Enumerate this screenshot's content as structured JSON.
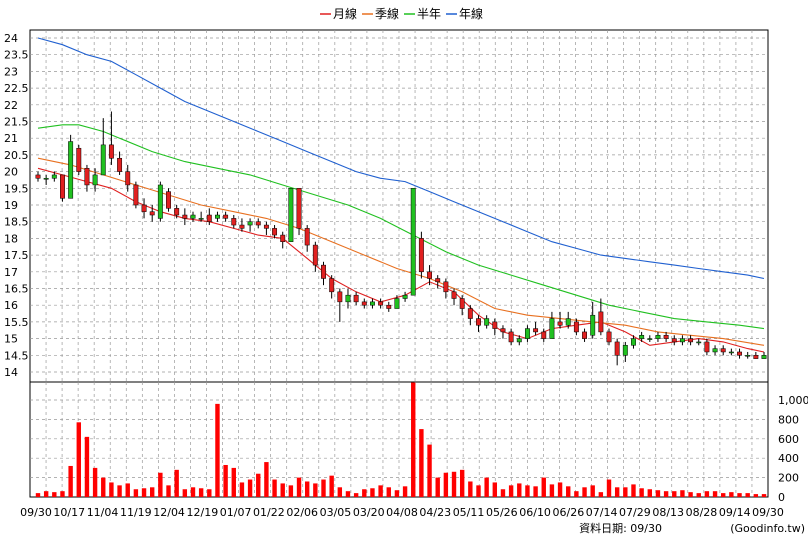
{
  "chart_data": {
    "type": "candlestick",
    "legend": {
      "placement": "top-center",
      "items": [
        {
          "name": "月線",
          "color": "#e02020"
        },
        {
          "name": "季線",
          "color": "#e87020"
        },
        {
          "name": "半年",
          "color": "#20c020"
        },
        {
          "name": "年線",
          "color": "#2060d0"
        }
      ]
    },
    "price_axis": {
      "min": 14,
      "max": 24,
      "ticks": [
        "24",
        "23.5",
        "23",
        "22.5",
        "22",
        "21.5",
        "21",
        "20.5",
        "20",
        "19.5",
        "19",
        "18.5",
        "18",
        "17.5",
        "17",
        "16.5",
        "16",
        "15.5",
        "15",
        "14.5",
        "14"
      ]
    },
    "volume_axis": {
      "min": 0,
      "max": 1000,
      "ticks": [
        "1,000",
        "800",
        "600",
        "400",
        "200",
        "0"
      ]
    },
    "x_labels": [
      "09/30",
      "10/17",
      "11/04",
      "11/19",
      "12/04",
      "12/19",
      "01/07",
      "01/22",
      "02/06",
      "03/05",
      "03/20",
      "04/08",
      "04/23",
      "05/11",
      "05/26",
      "06/10",
      "06/26",
      "07/14",
      "07/29",
      "08/13",
      "08/28",
      "09/14",
      "09/30"
    ],
    "grid": true,
    "candle_colors": {
      "up": "#20c020",
      "down": "#e02020"
    },
    "volume_color": "#ff0000",
    "ma_series": [
      {
        "name": "月線",
        "color": "#e02020",
        "points": [
          [
            0,
            20.1
          ],
          [
            3,
            19.9
          ],
          [
            6,
            19.7
          ],
          [
            9,
            19.5
          ],
          [
            12,
            19.1
          ],
          [
            15,
            18.8
          ],
          [
            18,
            18.6
          ],
          [
            21,
            18.5
          ],
          [
            24,
            18.3
          ],
          [
            27,
            18.1
          ],
          [
            30,
            18.0
          ],
          [
            33,
            17.4
          ],
          [
            36,
            16.8
          ],
          [
            39,
            16.4
          ],
          [
            42,
            16.1
          ],
          [
            45,
            16.3
          ],
          [
            48,
            16.7
          ],
          [
            51,
            16.4
          ],
          [
            54,
            15.7
          ],
          [
            57,
            15.2
          ],
          [
            60,
            15.0
          ],
          [
            63,
            15.3
          ],
          [
            66,
            15.4
          ],
          [
            69,
            15.5
          ],
          [
            72,
            15.2
          ],
          [
            75,
            14.8
          ],
          [
            78,
            14.9
          ],
          [
            81,
            15.0
          ],
          [
            84,
            14.9
          ],
          [
            87,
            14.7
          ],
          [
            89,
            14.6
          ]
        ]
      },
      {
        "name": "季線",
        "color": "#e87020",
        "points": [
          [
            0,
            20.4
          ],
          [
            4,
            20.2
          ],
          [
            8,
            19.9
          ],
          [
            12,
            19.6
          ],
          [
            16,
            19.3
          ],
          [
            20,
            19.0
          ],
          [
            24,
            18.8
          ],
          [
            28,
            18.6
          ],
          [
            32,
            18.3
          ],
          [
            36,
            17.9
          ],
          [
            40,
            17.5
          ],
          [
            44,
            17.1
          ],
          [
            48,
            16.8
          ],
          [
            52,
            16.4
          ],
          [
            56,
            15.9
          ],
          [
            60,
            15.7
          ],
          [
            64,
            15.6
          ],
          [
            68,
            15.5
          ],
          [
            72,
            15.4
          ],
          [
            76,
            15.2
          ],
          [
            80,
            15.1
          ],
          [
            84,
            15.0
          ],
          [
            89,
            14.8
          ]
        ]
      },
      {
        "name": "半年",
        "color": "#20c020",
        "points": [
          [
            0,
            21.3
          ],
          [
            3,
            21.4
          ],
          [
            5,
            21.4
          ],
          [
            8,
            21.2
          ],
          [
            10,
            21.0
          ],
          [
            14,
            20.6
          ],
          [
            18,
            20.3
          ],
          [
            22,
            20.1
          ],
          [
            26,
            19.9
          ],
          [
            30,
            19.6
          ],
          [
            34,
            19.3
          ],
          [
            38,
            19.0
          ],
          [
            42,
            18.6
          ],
          [
            46,
            18.1
          ],
          [
            50,
            17.6
          ],
          [
            54,
            17.2
          ],
          [
            58,
            16.9
          ],
          [
            62,
            16.6
          ],
          [
            66,
            16.3
          ],
          [
            70,
            16.0
          ],
          [
            74,
            15.8
          ],
          [
            78,
            15.6
          ],
          [
            82,
            15.5
          ],
          [
            86,
            15.4
          ],
          [
            89,
            15.3
          ]
        ]
      },
      {
        "name": "年線",
        "color": "#2060d0",
        "points": [
          [
            0,
            24.0
          ],
          [
            3,
            23.8
          ],
          [
            6,
            23.5
          ],
          [
            9,
            23.3
          ],
          [
            12,
            22.9
          ],
          [
            15,
            22.5
          ],
          [
            18,
            22.1
          ],
          [
            21,
            21.8
          ],
          [
            24,
            21.5
          ],
          [
            27,
            21.2
          ],
          [
            30,
            20.9
          ],
          [
            33,
            20.6
          ],
          [
            36,
            20.3
          ],
          [
            39,
            20.0
          ],
          [
            42,
            19.8
          ],
          [
            45,
            19.7
          ],
          [
            48,
            19.4
          ],
          [
            51,
            19.1
          ],
          [
            54,
            18.8
          ],
          [
            57,
            18.5
          ],
          [
            60,
            18.2
          ],
          [
            63,
            17.9
          ],
          [
            66,
            17.7
          ],
          [
            69,
            17.5
          ],
          [
            72,
            17.4
          ],
          [
            75,
            17.3
          ],
          [
            78,
            17.2
          ],
          [
            81,
            17.1
          ],
          [
            84,
            17.0
          ],
          [
            87,
            16.9
          ],
          [
            89,
            16.8
          ]
        ]
      }
    ],
    "candles": [
      [
        19.9,
        19.8,
        20.0,
        19.7
      ],
      [
        19.8,
        19.8,
        19.9,
        19.6
      ],
      [
        19.8,
        19.9,
        20.0,
        19.7
      ],
      [
        19.9,
        19.2,
        19.9,
        19.1
      ],
      [
        19.2,
        20.9,
        21.1,
        19.2
      ],
      [
        20.7,
        20.0,
        20.8,
        19.9
      ],
      [
        20.1,
        19.6,
        20.2,
        19.4
      ],
      [
        19.6,
        19.9,
        20.1,
        19.4
      ],
      [
        19.9,
        20.8,
        21.6,
        19.9
      ],
      [
        20.8,
        20.4,
        21.8,
        20.2
      ],
      [
        20.4,
        20.0,
        20.6,
        19.9
      ],
      [
        20.0,
        19.6,
        20.2,
        19.4
      ],
      [
        19.6,
        19.0,
        19.7,
        18.9
      ],
      [
        19.0,
        18.8,
        19.2,
        18.6
      ],
      [
        18.8,
        18.7,
        19.0,
        18.5
      ],
      [
        18.6,
        19.6,
        19.7,
        18.5
      ],
      [
        19.4,
        18.9,
        19.5,
        18.8
      ],
      [
        18.9,
        18.7,
        19.0,
        18.6
      ],
      [
        18.7,
        18.6,
        18.9,
        18.4
      ],
      [
        18.6,
        18.7,
        18.8,
        18.5
      ],
      [
        18.6,
        18.6,
        18.8,
        18.5
      ],
      [
        18.7,
        18.5,
        18.9,
        18.4
      ],
      [
        18.6,
        18.7,
        18.8,
        18.5
      ],
      [
        18.7,
        18.6,
        18.8,
        18.5
      ],
      [
        18.6,
        18.4,
        18.7,
        18.3
      ],
      [
        18.4,
        18.3,
        18.6,
        18.2
      ],
      [
        18.4,
        18.5,
        18.6,
        18.2
      ],
      [
        18.5,
        18.4,
        18.6,
        18.3
      ],
      [
        18.4,
        18.3,
        18.5,
        18.1
      ],
      [
        18.3,
        18.1,
        18.4,
        18.0
      ],
      [
        18.1,
        17.9,
        18.2,
        17.7
      ],
      [
        17.9,
        19.5,
        19.5,
        17.9
      ],
      [
        19.5,
        18.3,
        19.5,
        18.1
      ],
      [
        18.3,
        17.8,
        18.4,
        17.6
      ],
      [
        17.8,
        17.2,
        17.9,
        17.0
      ],
      [
        17.2,
        16.8,
        17.3,
        16.6
      ],
      [
        16.8,
        16.4,
        16.9,
        16.2
      ],
      [
        16.4,
        16.1,
        16.5,
        15.5
      ],
      [
        16.1,
        16.3,
        16.5,
        15.9
      ],
      [
        16.3,
        16.1,
        16.4,
        16.0
      ],
      [
        16.1,
        16.0,
        16.2,
        15.9
      ],
      [
        16.0,
        16.1,
        16.2,
        15.9
      ],
      [
        16.1,
        16.0,
        16.2,
        15.9
      ],
      [
        16.0,
        15.9,
        16.1,
        15.8
      ],
      [
        15.9,
        16.2,
        16.3,
        15.9
      ],
      [
        16.2,
        16.3,
        16.4,
        16.1
      ],
      [
        16.3,
        19.5,
        19.5,
        16.3
      ],
      [
        18.0,
        17.0,
        18.2,
        16.8
      ],
      [
        17.0,
        16.8,
        17.2,
        16.6
      ],
      [
        16.8,
        16.7,
        16.9,
        16.5
      ],
      [
        16.7,
        16.4,
        16.8,
        16.2
      ],
      [
        16.4,
        16.2,
        16.5,
        16.0
      ],
      [
        16.2,
        15.9,
        16.3,
        15.7
      ],
      [
        15.9,
        15.6,
        16.0,
        15.4
      ],
      [
        15.6,
        15.4,
        15.7,
        15.2
      ],
      [
        15.4,
        15.6,
        15.7,
        15.3
      ],
      [
        15.5,
        15.3,
        15.6,
        15.1
      ],
      [
        15.3,
        15.2,
        15.4,
        15.0
      ],
      [
        15.2,
        14.9,
        15.3,
        14.8
      ],
      [
        14.9,
        15.0,
        15.1,
        14.8
      ],
      [
        15.0,
        15.3,
        15.4,
        14.9
      ],
      [
        15.3,
        15.2,
        15.5,
        15.1
      ],
      [
        15.2,
        15.0,
        15.3,
        14.9
      ],
      [
        15.0,
        15.6,
        15.8,
        15.0
      ],
      [
        15.5,
        15.4,
        15.8,
        15.3
      ],
      [
        15.4,
        15.6,
        15.8,
        15.3
      ],
      [
        15.5,
        15.2,
        15.6,
        15.1
      ],
      [
        15.2,
        15.0,
        15.3,
        14.9
      ],
      [
        15.1,
        15.7,
        16.1,
        15.0
      ],
      [
        15.8,
        15.2,
        16.2,
        15.1
      ],
      [
        15.2,
        14.9,
        15.3,
        14.8
      ],
      [
        14.9,
        14.5,
        15.0,
        14.2
      ],
      [
        14.5,
        14.8,
        14.9,
        14.3
      ],
      [
        14.8,
        15.0,
        15.1,
        14.7
      ],
      [
        15.0,
        15.1,
        15.2,
        14.9
      ],
      [
        15.0,
        15.0,
        15.1,
        14.9
      ],
      [
        15.0,
        15.1,
        15.2,
        14.9
      ],
      [
        15.1,
        15.0,
        15.2,
        14.9
      ],
      [
        15.0,
        14.9,
        15.1,
        14.8
      ],
      [
        14.9,
        15.0,
        15.1,
        14.8
      ],
      [
        15.0,
        14.9,
        15.1,
        14.8
      ],
      [
        14.9,
        14.9,
        15.0,
        14.8
      ],
      [
        14.9,
        14.6,
        15.0,
        14.5
      ],
      [
        14.6,
        14.7,
        14.8,
        14.5
      ],
      [
        14.7,
        14.6,
        14.8,
        14.5
      ],
      [
        14.6,
        14.6,
        14.7,
        14.5
      ],
      [
        14.6,
        14.5,
        14.7,
        14.4
      ],
      [
        14.5,
        14.5,
        14.6,
        14.4
      ],
      [
        14.5,
        14.4,
        14.6,
        14.4
      ],
      [
        14.4,
        14.5,
        14.6,
        14.4
      ]
    ],
    "volumes": [
      40,
      60,
      50,
      60,
      320,
      770,
      620,
      300,
      200,
      150,
      120,
      140,
      80,
      90,
      100,
      250,
      120,
      280,
      80,
      100,
      90,
      80,
      960,
      330,
      300,
      150,
      180,
      240,
      360,
      180,
      140,
      120,
      200,
      160,
      140,
      180,
      220,
      100,
      60,
      40,
      80,
      90,
      120,
      100,
      70,
      110,
      1180,
      700,
      540,
      200,
      250,
      260,
      280,
      160,
      120,
      200,
      150,
      80,
      120,
      140,
      120,
      110,
      200,
      130,
      150,
      110,
      60,
      100,
      120,
      50,
      180,
      100,
      100,
      130,
      90,
      80,
      70,
      60,
      60,
      70,
      50,
      40,
      60,
      60,
      40,
      50,
      40,
      40,
      30,
      30
    ]
  },
  "footer": {
    "label": "資料日期: 09/30",
    "source": "(Goodinfo.tw)"
  }
}
